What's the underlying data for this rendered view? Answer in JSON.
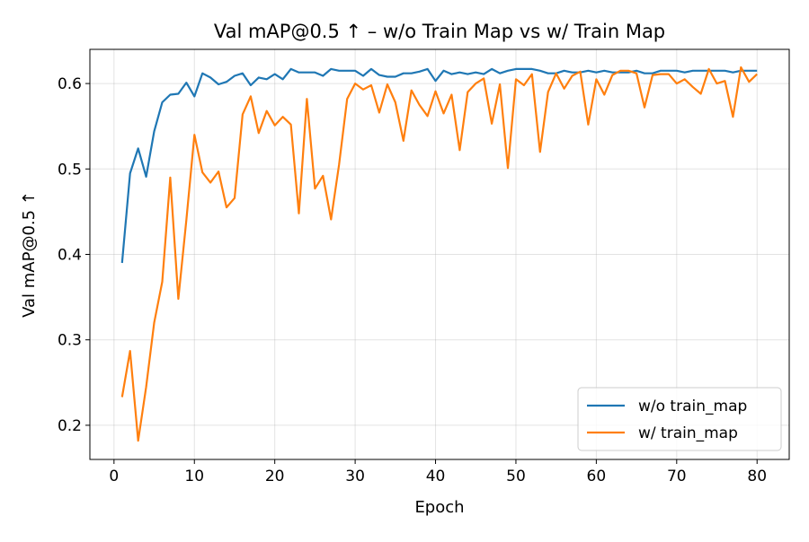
{
  "chart_data": {
    "type": "line",
    "title": "Val mAP@0.5 ↑ – w/o Train Map vs  w/ Train Map",
    "xlabel": "Epoch",
    "ylabel": "Val mAP@0.5 ↑",
    "xlim": [
      -3,
      84
    ],
    "ylim": [
      0.16,
      0.64
    ],
    "xticks": [
      0,
      10,
      20,
      30,
      40,
      50,
      60,
      70,
      80
    ],
    "yticks": [
      0.2,
      0.3,
      0.4,
      0.5,
      0.6
    ],
    "xtick_labels": [
      "0",
      "10",
      "20",
      "30",
      "40",
      "50",
      "60",
      "70",
      "80"
    ],
    "ytick_labels": [
      "0.2",
      "0.3",
      "0.4",
      "0.5",
      "0.6"
    ],
    "grid": true,
    "legend_position": "lower-right",
    "x": [
      1,
      2,
      3,
      4,
      5,
      6,
      7,
      8,
      9,
      10,
      11,
      12,
      13,
      14,
      15,
      16,
      17,
      18,
      19,
      20,
      21,
      22,
      23,
      24,
      25,
      26,
      27,
      28,
      29,
      30,
      31,
      32,
      33,
      34,
      35,
      36,
      37,
      38,
      39,
      40,
      41,
      42,
      43,
      44,
      45,
      46,
      47,
      48,
      49,
      50,
      51,
      52,
      53,
      54,
      55,
      56,
      57,
      58,
      59,
      60,
      61,
      62,
      63,
      64,
      65,
      66,
      67,
      68,
      69,
      70,
      71,
      72,
      73,
      74,
      75,
      76,
      77,
      78,
      79,
      80
    ],
    "series": [
      {
        "name": "w/o train_map",
        "color": "#1f77b4",
        "values": [
          0.39,
          0.495,
          0.524,
          0.491,
          0.544,
          0.578,
          0.587,
          0.588,
          0.601,
          0.585,
          0.612,
          0.607,
          0.599,
          0.602,
          0.609,
          0.612,
          0.598,
          0.607,
          0.605,
          0.611,
          0.605,
          0.617,
          0.613,
          0.613,
          0.613,
          0.609,
          0.617,
          0.615,
          0.615,
          0.615,
          0.609,
          0.617,
          0.61,
          0.608,
          0.608,
          0.612,
          0.612,
          0.614,
          0.617,
          0.603,
          0.615,
          0.611,
          0.613,
          0.611,
          0.613,
          0.611,
          0.617,
          0.612,
          0.615,
          0.617,
          0.617,
          0.617,
          0.615,
          0.612,
          0.612,
          0.615,
          0.613,
          0.613,
          0.615,
          0.613,
          0.615,
          0.613,
          0.613,
          0.613,
          0.615,
          0.612,
          0.612,
          0.615,
          0.615,
          0.615,
          0.613,
          0.615,
          0.615,
          0.615,
          0.615,
          0.615,
          0.613,
          0.615,
          0.615,
          0.615
        ]
      },
      {
        "name": "w/ train_map",
        "color": "#ff7f0e",
        "values": [
          0.233,
          0.287,
          0.182,
          0.245,
          0.32,
          0.368,
          0.49,
          0.348,
          0.44,
          0.54,
          0.496,
          0.484,
          0.497,
          0.455,
          0.466,
          0.564,
          0.585,
          0.542,
          0.568,
          0.551,
          0.561,
          0.552,
          0.448,
          0.582,
          0.477,
          0.492,
          0.441,
          0.505,
          0.582,
          0.6,
          0.593,
          0.598,
          0.566,
          0.599,
          0.578,
          0.533,
          0.592,
          0.575,
          0.562,
          0.591,
          0.565,
          0.587,
          0.522,
          0.59,
          0.6,
          0.606,
          0.553,
          0.599,
          0.501,
          0.605,
          0.598,
          0.611,
          0.52,
          0.59,
          0.612,
          0.594,
          0.609,
          0.614,
          0.552,
          0.605,
          0.587,
          0.61,
          0.615,
          0.615,
          0.612,
          0.572,
          0.61,
          0.611,
          0.611,
          0.6,
          0.605,
          0.596,
          0.588,
          0.617,
          0.6,
          0.603,
          0.561,
          0.619,
          0.602,
          0.611
        ]
      }
    ]
  }
}
